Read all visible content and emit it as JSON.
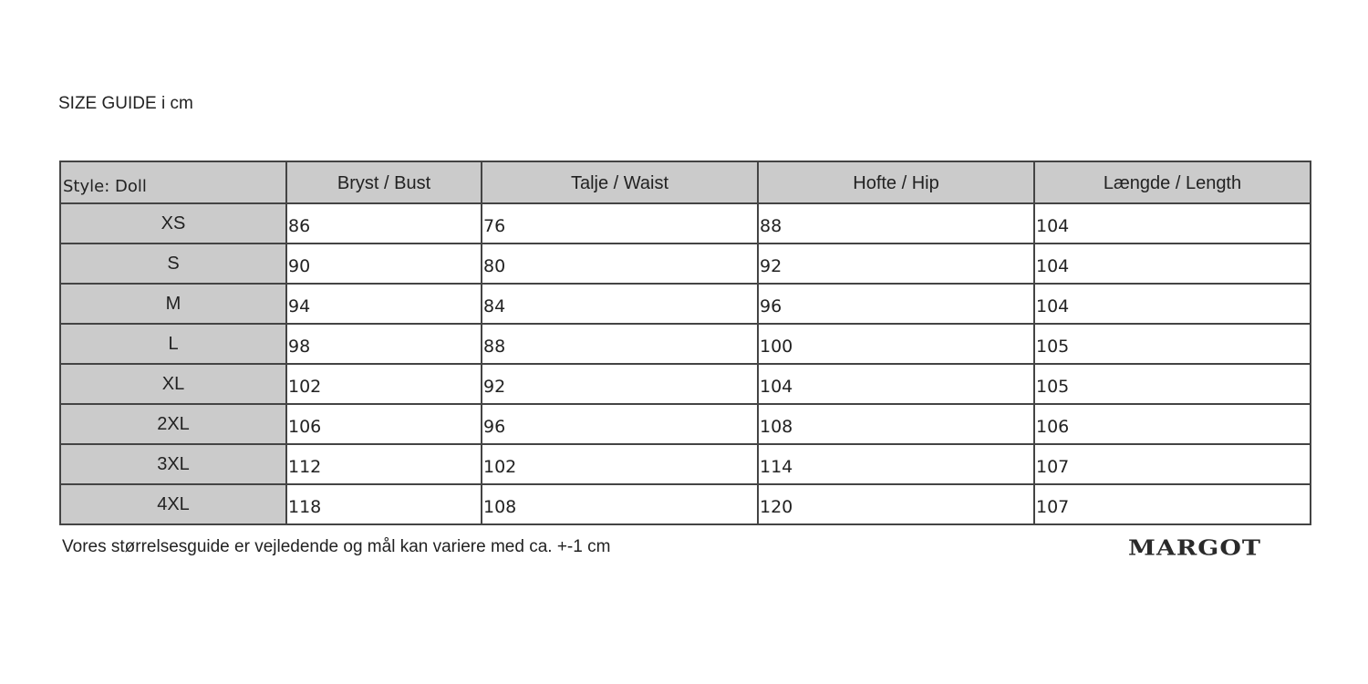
{
  "title": "SIZE GUIDE i cm",
  "table": {
    "style_label": "Style: Doll",
    "columns": [
      "Bryst / Bust",
      "Talje / Waist",
      "Hofte / Hip",
      "Længde / Length"
    ],
    "rows": [
      {
        "size": "XS",
        "values": [
          "86",
          "76",
          "88",
          "104"
        ]
      },
      {
        "size": "S",
        "values": [
          "90",
          "80",
          "92",
          "104"
        ]
      },
      {
        "size": "M",
        "values": [
          "94",
          "84",
          "96",
          "104"
        ]
      },
      {
        "size": "L",
        "values": [
          "98",
          "88",
          "100",
          "105"
        ]
      },
      {
        "size": "XL",
        "values": [
          "102",
          "92",
          "104",
          "105"
        ]
      },
      {
        "size": "2XL",
        "values": [
          "106",
          "96",
          "108",
          "106"
        ]
      },
      {
        "size": "3XL",
        "values": [
          "112",
          "102",
          "114",
          "107"
        ]
      },
      {
        "size": "4XL",
        "values": [
          "118",
          "108",
          "120",
          "107"
        ]
      }
    ]
  },
  "note": "Vores størrelsesguide er vejledende og mål kan variere med ca. +-1 cm",
  "logo": "MARGOT"
}
